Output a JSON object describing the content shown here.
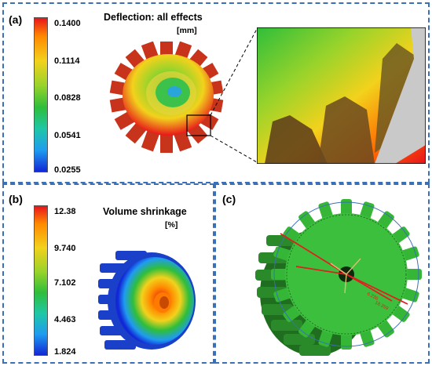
{
  "panel_a": {
    "label": "(a)",
    "title": "Deflection: all effects",
    "unit": "[mm]",
    "scale": [
      "0.1400",
      "0.1114",
      "0.0828",
      "0.0541",
      "0.0255"
    ]
  },
  "panel_b": {
    "label": "(b)",
    "title": "Volume shrinkage",
    "unit": "[%]",
    "scale": [
      "12.38",
      "9.740",
      "7.102",
      "4.463",
      "1.824"
    ]
  },
  "panel_c": {
    "label": "(c)",
    "dim_labels": [
      "6.236",
      "18.359"
    ]
  },
  "colors": {
    "frame": "#3b6fb6",
    "gear_green": "#2fa12f",
    "dimension_line": "#e02020"
  }
}
